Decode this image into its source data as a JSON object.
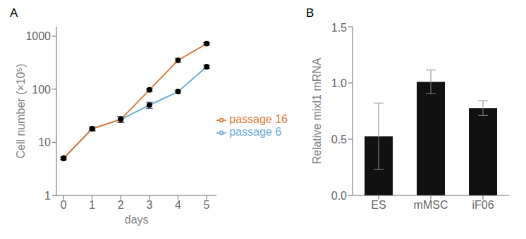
{
  "chart_data": [
    {
      "type": "line",
      "title": "A",
      "xlabel": "days",
      "ylabel": "Cell number (×10⁵)",
      "x": [
        0,
        1,
        2,
        3,
        4,
        5
      ],
      "xlim": [
        -0.25,
        5.35
      ],
      "xticks": [
        0,
        1,
        2,
        3,
        4,
        5
      ],
      "ylim": [
        1,
        1500
      ],
      "yticks": [
        1,
        10,
        100,
        1000
      ],
      "log": "y",
      "legend": "right",
      "marker": "o",
      "series": [
        {
          "name": "passage 6",
          "color": "#6aabdb",
          "values": [
            5.0,
            18.0,
            27.0,
            50.0,
            90.0,
            265.0
          ],
          "errors": [
            0.3,
            1.5,
            3.5,
            7.0,
            6.0,
            20.0
          ]
        },
        {
          "name": "passage 16",
          "color": "#e07b3a",
          "values": [
            5.0,
            18.0,
            27.0,
            97.0,
            350.0,
            720.0
          ],
          "errors": [
            0.3,
            1.5,
            3.5,
            6.0,
            30.0,
            35.0
          ]
        }
      ]
    },
    {
      "type": "bar",
      "title": "B",
      "ylabel": "Relative mixl1 mRNA",
      "categories": [
        "ES",
        "mMSC",
        "iF06"
      ],
      "values": [
        0.525,
        1.01,
        0.775
      ],
      "errors": [
        0.295,
        0.105,
        0.065
      ],
      "color": "#111111",
      "ylim": [
        0,
        1.5
      ],
      "yticks": [
        {
          "value": 0,
          "label": "0.0"
        },
        0.5,
        {
          "value": 1.0,
          "label": "1.0"
        },
        {
          "value": 1.5,
          "label": "1.5"
        }
      ]
    }
  ]
}
